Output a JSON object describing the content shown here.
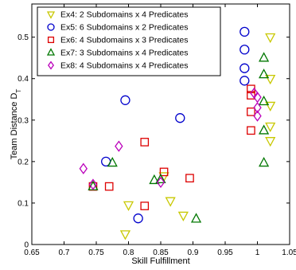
{
  "chart_data": {
    "type": "scatter",
    "xlabel": "Skill Fulfillment",
    "ylabel_main": "Team Distance D",
    "ylabel_sub": "T",
    "xlim": [
      0.65,
      1.05
    ],
    "ylim": [
      0,
      0.58
    ],
    "xticks": [
      0.65,
      0.7,
      0.75,
      0.8,
      0.85,
      0.9,
      0.95,
      1,
      1.05
    ],
    "xtick_labels": [
      "0.65",
      "0.7",
      "0.75",
      "0.8",
      "0.85",
      "0.9",
      "0.95",
      "1",
      "1.05"
    ],
    "yticks": [
      0,
      0.1,
      0.2,
      0.3,
      0.4,
      0.5
    ],
    "ytick_labels": [
      "0",
      "0.1",
      "0.2",
      "0.3",
      "0.4",
      "0.5"
    ],
    "legend_position": "top-left",
    "series": [
      {
        "name": "Ex4: 2 Subdomains x 4 Predicates",
        "marker": "triangle-down",
        "color": "#c8c800",
        "points": [
          [
            0.795,
            0.025
          ],
          [
            0.8,
            0.095
          ],
          [
            0.855,
            0.165
          ],
          [
            0.865,
            0.105
          ],
          [
            0.885,
            0.07
          ],
          [
            1.02,
            0.5
          ],
          [
            1.02,
            0.4
          ],
          [
            1.02,
            0.335
          ],
          [
            1.02,
            0.285
          ],
          [
            1.02,
            0.25
          ]
        ]
      },
      {
        "name": "Ex5: 6 Subdomains x 2 Predicates",
        "marker": "circle",
        "color": "#0000cc",
        "points": [
          [
            0.795,
            0.348
          ],
          [
            0.88,
            0.305
          ],
          [
            0.765,
            0.2
          ],
          [
            0.815,
            0.063
          ],
          [
            0.98,
            0.513
          ],
          [
            0.98,
            0.47
          ],
          [
            0.98,
            0.425
          ],
          [
            0.98,
            0.395
          ]
        ]
      },
      {
        "name": "Ex6: 4 Subdomains x 3 Predicates",
        "marker": "square",
        "color": "#dd0000",
        "points": [
          [
            0.745,
            0.14
          ],
          [
            0.77,
            0.14
          ],
          [
            0.825,
            0.247
          ],
          [
            0.825,
            0.093
          ],
          [
            0.855,
            0.175
          ],
          [
            0.895,
            0.16
          ],
          [
            0.99,
            0.375
          ],
          [
            0.99,
            0.36
          ],
          [
            0.99,
            0.32
          ],
          [
            0.99,
            0.275
          ]
        ]
      },
      {
        "name": "Ex7: 3 Subdomains x 4 Predicates",
        "marker": "triangle-up",
        "color": "#007700",
        "points": [
          [
            0.745,
            0.14
          ],
          [
            0.775,
            0.197
          ],
          [
            0.84,
            0.155
          ],
          [
            0.85,
            0.157
          ],
          [
            0.905,
            0.062
          ],
          [
            1.01,
            0.45
          ],
          [
            1.01,
            0.41
          ],
          [
            1.01,
            0.345
          ],
          [
            1.01,
            0.275
          ],
          [
            1.01,
            0.197
          ]
        ]
      },
      {
        "name": "Ex8: 4 Subdomains x 4 Predicates",
        "marker": "diamond",
        "color": "#bb00bb",
        "points": [
          [
            0.73,
            0.183
          ],
          [
            0.745,
            0.145
          ],
          [
            0.785,
            0.237
          ],
          [
            0.85,
            0.15
          ],
          [
            0.995,
            0.365
          ],
          [
            1.0,
            0.355
          ],
          [
            1.0,
            0.33
          ],
          [
            1.0,
            0.31
          ]
        ]
      }
    ]
  }
}
